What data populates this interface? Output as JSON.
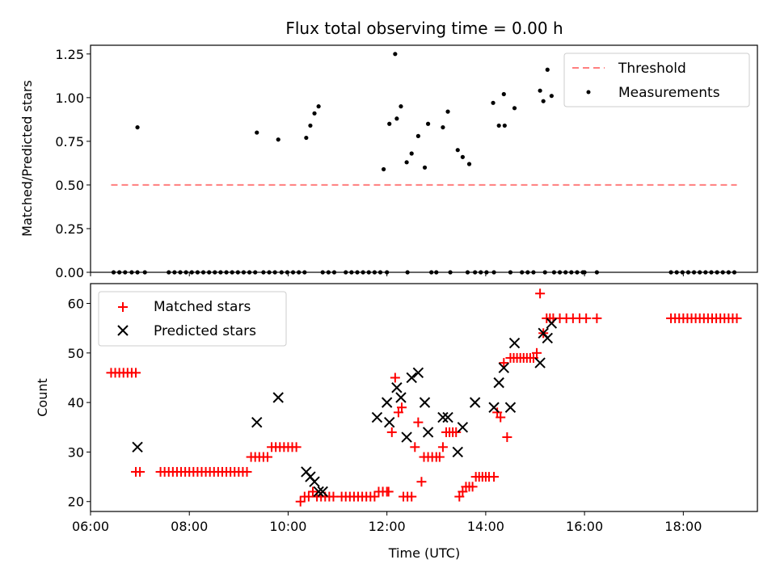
{
  "chart_data": [
    {
      "type": "scatter",
      "title": "Flux total observing time = 0.00 h",
      "xlabel": "",
      "ylabel": "Matched/Predicted stars",
      "xlim": [
        "06:00",
        "19:30"
      ],
      "ylim": [
        0,
        1.3
      ],
      "yticks": [
        "0.00",
        "0.25",
        "0.50",
        "0.75",
        "1.00",
        "1.25"
      ],
      "legend": "top-right",
      "threshold": {
        "name": "Threshold",
        "y": 0.5,
        "x_from": "06:25",
        "x_to": "19:05",
        "color": "#ff7f7f",
        "style": "dashed"
      },
      "series": [
        {
          "name": "Measurements",
          "marker": "dot",
          "color": "#000000",
          "x": [
            "06:28",
            "06:35",
            "06:42",
            "06:50",
            "06:57",
            "06:57",
            "07:06",
            "07:35",
            "07:42",
            "07:49",
            "07:56",
            "08:03",
            "08:10",
            "08:17",
            "08:24",
            "08:31",
            "08:38",
            "08:45",
            "08:52",
            "08:59",
            "09:06",
            "09:13",
            "09:20",
            "09:22",
            "09:30",
            "09:37",
            "09:44",
            "09:48",
            "09:52",
            "09:59",
            "10:06",
            "10:13",
            "10:20",
            "10:22",
            "10:27",
            "10:32",
            "10:37",
            "10:42",
            "10:49",
            "10:56",
            "11:10",
            "11:17",
            "11:24",
            "11:31",
            "11:38",
            "11:45",
            "11:52",
            "11:56",
            "12:00",
            "12:03",
            "12:10",
            "12:12",
            "12:17",
            "12:24",
            "12:25",
            "12:30",
            "12:38",
            "12:46",
            "12:50",
            "12:54",
            "13:00",
            "13:08",
            "13:14",
            "13:17",
            "13:26",
            "13:32",
            "13:38",
            "13:40",
            "13:47",
            "13:54",
            "14:01",
            "14:09",
            "14:10",
            "14:16",
            "14:22",
            "14:23",
            "14:30",
            "14:35",
            "14:44",
            "14:51",
            "14:58",
            "15:06",
            "15:10",
            "15:12",
            "15:15",
            "15:20",
            "15:23",
            "15:30",
            "15:37",
            "15:44",
            "15:51",
            "15:58",
            "16:00",
            "16:15",
            "17:45",
            "17:52",
            "17:59",
            "18:06",
            "18:13",
            "18:20",
            "18:27",
            "18:34",
            "18:41",
            "18:48",
            "18:55",
            "19:02"
          ],
          "y": [
            0,
            0,
            0,
            0,
            0,
            0.83,
            0,
            0,
            0,
            0,
            0,
            0,
            0,
            0,
            0,
            0,
            0,
            0,
            0,
            0,
            0,
            0,
            0,
            0.8,
            0,
            0,
            0,
            0.76,
            0,
            0,
            0,
            0,
            0,
            0.77,
            0.84,
            0.91,
            0.95,
            0,
            0,
            0,
            0,
            0,
            0,
            0,
            0,
            0,
            0,
            0.59,
            0,
            0.85,
            1.25,
            0.88,
            0.95,
            0.63,
            0,
            0.68,
            0.78,
            0.6,
            0.85,
            0,
            0,
            0.83,
            0.92,
            0,
            0.7,
            0.66,
            0,
            0.62,
            0,
            0,
            0,
            0.97,
            0,
            0.84,
            1.02,
            0.84,
            0,
            0.94,
            0,
            0,
            0,
            1.04,
            0.98,
            0,
            1.16,
            1.01,
            0,
            0,
            0,
            0,
            0,
            0,
            0,
            0,
            0,
            0,
            0,
            0,
            0,
            0,
            0,
            0,
            0,
            0,
            0,
            0
          ]
        }
      ]
    },
    {
      "type": "scatter",
      "title": "",
      "xlabel": "Time (UTC)",
      "ylabel": "Count",
      "xlim": [
        "06:00",
        "19:30"
      ],
      "ylim": [
        18,
        64
      ],
      "yticks": [
        "20",
        "30",
        "40",
        "50",
        "60"
      ],
      "xticks": [
        "06:00",
        "08:00",
        "10:00",
        "12:00",
        "14:00",
        "16:00",
        "18:00"
      ],
      "legend": "top-left",
      "series": [
        {
          "name": "Matched stars",
          "marker": "plus",
          "color": "#ff0000",
          "x": [
            "06:25",
            "06:30",
            "06:35",
            "06:40",
            "06:45",
            "06:50",
            "06:55",
            "06:55",
            "07:00",
            "07:25",
            "07:30",
            "07:35",
            "07:40",
            "07:45",
            "07:50",
            "07:55",
            "08:00",
            "08:05",
            "08:10",
            "08:15",
            "08:20",
            "08:25",
            "08:30",
            "08:35",
            "08:40",
            "08:45",
            "08:50",
            "08:55",
            "09:00",
            "09:05",
            "09:10",
            "09:15",
            "09:20",
            "09:25",
            "09:30",
            "09:35",
            "09:40",
            "09:45",
            "09:50",
            "09:55",
            "10:00",
            "10:05",
            "10:10",
            "10:15",
            "10:20",
            "10:25",
            "10:30",
            "10:35",
            "10:40",
            "10:45",
            "10:50",
            "10:55",
            "11:05",
            "11:10",
            "11:15",
            "11:20",
            "11:25",
            "11:30",
            "11:35",
            "11:40",
            "11:45",
            "11:50",
            "11:55",
            "12:00",
            "12:02",
            "12:06",
            "12:10",
            "12:14",
            "12:18",
            "12:20",
            "12:25",
            "12:30",
            "12:34",
            "12:38",
            "12:42",
            "12:45",
            "12:50",
            "12:55",
            "13:00",
            "13:04",
            "13:08",
            "13:12",
            "13:16",
            "13:20",
            "13:24",
            "13:28",
            "13:32",
            "13:36",
            "13:40",
            "13:44",
            "13:48",
            "13:52",
            "13:56",
            "14:00",
            "14:04",
            "14:10",
            "14:14",
            "14:18",
            "14:22",
            "14:26",
            "14:30",
            "14:34",
            "14:38",
            "14:42",
            "14:46",
            "14:50",
            "14:54",
            "14:58",
            "15:02",
            "15:06",
            "15:10",
            "15:14",
            "15:18",
            "15:22",
            "15:30",
            "15:38",
            "15:46",
            "15:54",
            "16:02",
            "16:15",
            "17:45",
            "17:50",
            "17:55",
            "18:00",
            "18:05",
            "18:10",
            "18:15",
            "18:20",
            "18:25",
            "18:30",
            "18:35",
            "18:40",
            "18:45",
            "18:50",
            "18:55",
            "19:00",
            "19:05"
          ],
          "y": [
            46,
            46,
            46,
            46,
            46,
            46,
            46,
            26,
            26,
            26,
            26,
            26,
            26,
            26,
            26,
            26,
            26,
            26,
            26,
            26,
            26,
            26,
            26,
            26,
            26,
            26,
            26,
            26,
            26,
            26,
            26,
            29,
            29,
            29,
            29,
            29,
            31,
            31,
            31,
            31,
            31,
            31,
            31,
            20,
            21,
            21,
            22,
            21,
            21,
            21,
            21,
            21,
            21,
            21,
            21,
            21,
            21,
            21,
            21,
            21,
            21,
            22,
            22,
            22,
            22,
            34,
            45,
            38,
            39,
            21,
            21,
            21,
            31,
            36,
            24,
            29,
            29,
            29,
            29,
            29,
            31,
            34,
            34,
            34,
            34,
            21,
            22,
            23,
            23,
            23,
            25,
            25,
            25,
            25,
            25,
            25,
            38,
            37,
            48,
            33,
            49,
            49,
            49,
            49,
            49,
            49,
            49,
            49,
            50,
            62,
            54,
            57,
            57,
            57,
            57,
            57,
            57,
            57,
            57,
            57,
            57,
            57,
            57,
            57,
            57,
            57,
            57,
            57,
            57,
            57,
            57,
            57,
            57,
            57,
            57,
            57,
            57
          ]
        },
        {
          "name": "Predicted stars",
          "marker": "x",
          "color": "#000000",
          "x": [
            "06:57",
            "09:22",
            "09:48",
            "10:22",
            "10:27",
            "10:32",
            "10:37",
            "10:42",
            "11:48",
            "12:00",
            "12:03",
            "12:12",
            "12:17",
            "12:24",
            "12:30",
            "12:38",
            "12:46",
            "12:50",
            "13:08",
            "13:14",
            "13:26",
            "13:32",
            "13:47",
            "14:10",
            "14:16",
            "14:22",
            "14:30",
            "14:35",
            "15:06",
            "15:10",
            "15:15",
            "15:20"
          ],
          "y": [
            31,
            36,
            41,
            26,
            25,
            24,
            22,
            22,
            37,
            40,
            36,
            43,
            41,
            33,
            45,
            46,
            40,
            34,
            37,
            37,
            30,
            35,
            40,
            39,
            44,
            47,
            39,
            52,
            48,
            54,
            53,
            56
          ]
        }
      ]
    }
  ]
}
